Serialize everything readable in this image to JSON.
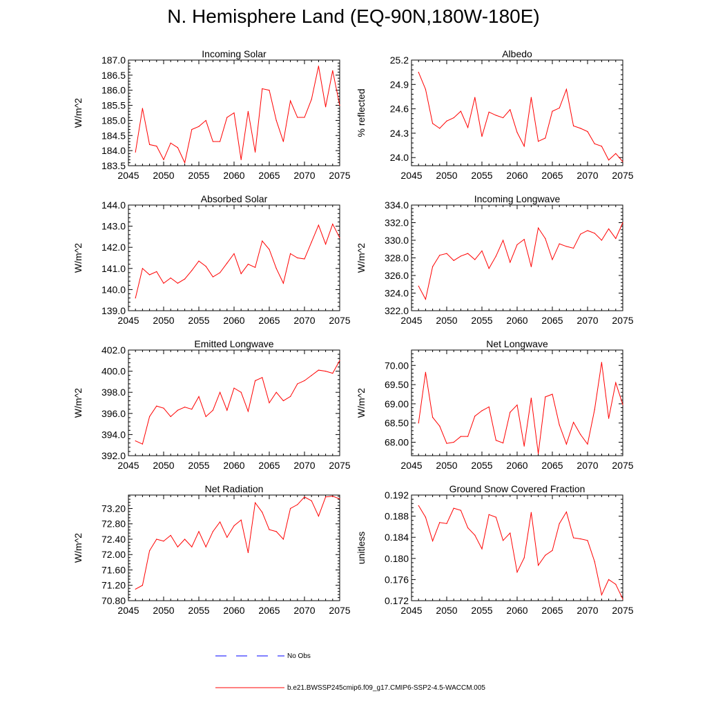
{
  "title": "N. Hemisphere Land (EQ-90N,180W-180E)",
  "colors": {
    "series": "#ff0000",
    "obs": "#0000ff",
    "axis": "#000000"
  },
  "legend": {
    "obs_label": "No Obs",
    "model_label": "b.e21.BWSSP245cmip6.f09_g17.CMIP6-SSP2-4.5-WACCM.005"
  },
  "chart_data": [
    {
      "type": "line",
      "title": "Incoming Solar",
      "ylabel": "W/m^2",
      "xlim": [
        2045,
        2075
      ],
      "ylim": [
        183.5,
        187.0
      ],
      "xticks": [
        2045,
        2050,
        2055,
        2060,
        2065,
        2070,
        2075
      ],
      "yticks": [
        183.5,
        184.0,
        184.5,
        185.0,
        185.5,
        186.0,
        186.5,
        187.0
      ],
      "ytick_labels": [
        "183.5",
        "184.0",
        "184.5",
        "185.0",
        "185.5",
        "186.0",
        "186.5",
        "187.0"
      ],
      "x": [
        2046,
        2047,
        2048,
        2049,
        2050,
        2051,
        2052,
        2053,
        2054,
        2055,
        2056,
        2057,
        2058,
        2059,
        2060,
        2061,
        2062,
        2063,
        2064,
        2065,
        2066,
        2067,
        2068,
        2069,
        2070,
        2071,
        2072,
        2073,
        2074,
        2075
      ],
      "values": [
        183.95,
        185.4,
        184.2,
        184.15,
        183.7,
        184.25,
        184.1,
        183.6,
        184.7,
        184.8,
        185.0,
        184.3,
        184.3,
        185.1,
        185.25,
        183.7,
        185.3,
        183.95,
        186.05,
        186.0,
        185.0,
        184.3,
        185.65,
        185.1,
        185.1,
        185.7,
        186.8,
        185.45,
        186.65,
        185.5
      ]
    },
    {
      "type": "line",
      "title": "Albedo",
      "ylabel": "% reflected",
      "xlim": [
        2045,
        2075
      ],
      "ylim": [
        23.9,
        25.2
      ],
      "xticks": [
        2045,
        2050,
        2055,
        2060,
        2065,
        2070,
        2075
      ],
      "yticks": [
        24.0,
        24.3,
        24.6,
        24.9,
        25.2
      ],
      "ytick_labels": [
        "24.0",
        "24.3",
        "24.6",
        "24.9",
        "25.2"
      ],
      "x": [
        2046,
        2047,
        2048,
        2049,
        2050,
        2051,
        2052,
        2053,
        2054,
        2055,
        2056,
        2057,
        2058,
        2059,
        2060,
        2061,
        2062,
        2063,
        2064,
        2065,
        2066,
        2067,
        2068,
        2069,
        2070,
        2071,
        2072,
        2073,
        2074,
        2075
      ],
      "values": [
        25.05,
        24.84,
        24.42,
        24.36,
        24.45,
        24.49,
        24.57,
        24.37,
        24.74,
        24.26,
        24.56,
        24.52,
        24.49,
        24.59,
        24.31,
        24.14,
        24.74,
        24.2,
        24.24,
        24.57,
        24.61,
        24.84,
        24.39,
        24.36,
        24.32,
        24.17,
        24.14,
        23.97,
        24.05,
        23.95
      ]
    },
    {
      "type": "line",
      "title": "Absorbed Solar",
      "ylabel": "W/m^2",
      "xlim": [
        2045,
        2075
      ],
      "ylim": [
        139.0,
        144.0
      ],
      "xticks": [
        2045,
        2050,
        2055,
        2060,
        2065,
        2070,
        2075
      ],
      "yticks": [
        139.0,
        140.0,
        141.0,
        142.0,
        143.0,
        144.0
      ],
      "ytick_labels": [
        "139.0",
        "140.0",
        "141.0",
        "142.0",
        "143.0",
        "144.0"
      ],
      "x": [
        2046,
        2047,
        2048,
        2049,
        2050,
        2051,
        2052,
        2053,
        2054,
        2055,
        2056,
        2057,
        2058,
        2059,
        2060,
        2061,
        2062,
        2063,
        2064,
        2065,
        2066,
        2067,
        2068,
        2069,
        2070,
        2071,
        2072,
        2073,
        2074,
        2075
      ],
      "values": [
        139.6,
        141.0,
        140.7,
        140.85,
        140.3,
        140.55,
        140.3,
        140.5,
        140.9,
        141.35,
        141.1,
        140.6,
        140.8,
        141.25,
        141.7,
        140.75,
        141.2,
        141.05,
        142.3,
        141.9,
        141.0,
        140.3,
        141.7,
        141.5,
        141.45,
        142.25,
        143.05,
        142.15,
        143.1,
        142.45
      ]
    },
    {
      "type": "line",
      "title": "Incoming Longwave",
      "ylabel": "W/m^2",
      "xlim": [
        2045,
        2075
      ],
      "ylim": [
        322.0,
        334.0
      ],
      "xticks": [
        2045,
        2050,
        2055,
        2060,
        2065,
        2070,
        2075
      ],
      "yticks": [
        322.0,
        324.0,
        326.0,
        328.0,
        330.0,
        332.0,
        334.0
      ],
      "ytick_labels": [
        "322.0",
        "324.0",
        "326.0",
        "328.0",
        "330.0",
        "332.0",
        "334.0"
      ],
      "x": [
        2046,
        2047,
        2048,
        2049,
        2050,
        2051,
        2052,
        2053,
        2054,
        2055,
        2056,
        2057,
        2058,
        2059,
        2060,
        2061,
        2062,
        2063,
        2064,
        2065,
        2066,
        2067,
        2068,
        2069,
        2070,
        2071,
        2072,
        2073,
        2074,
        2075
      ],
      "values": [
        324.8,
        323.3,
        327.0,
        328.3,
        328.5,
        327.7,
        328.2,
        328.5,
        327.8,
        328.8,
        326.8,
        328.2,
        330.0,
        327.5,
        329.5,
        330.1,
        327.0,
        331.4,
        330.2,
        327.8,
        329.6,
        329.3,
        329.1,
        330.7,
        331.1,
        330.8,
        330.0,
        331.3,
        330.2,
        332.0
      ]
    },
    {
      "type": "line",
      "title": "Emitted Longwave",
      "ylabel": "W/m^2",
      "xlim": [
        2045,
        2075
      ],
      "ylim": [
        392.0,
        402.0
      ],
      "xticks": [
        2045,
        2050,
        2055,
        2060,
        2065,
        2070,
        2075
      ],
      "yticks": [
        392.0,
        394.0,
        396.0,
        398.0,
        400.0,
        402.0
      ],
      "ytick_labels": [
        "392.0",
        "394.0",
        "396.0",
        "398.0",
        "400.0",
        "402.0"
      ],
      "x": [
        2046,
        2047,
        2048,
        2049,
        2050,
        2051,
        2052,
        2053,
        2054,
        2055,
        2056,
        2057,
        2058,
        2059,
        2060,
        2061,
        2062,
        2063,
        2064,
        2065,
        2066,
        2067,
        2068,
        2069,
        2070,
        2071,
        2072,
        2073,
        2074,
        2075
      ],
      "values": [
        393.4,
        393.1,
        395.7,
        396.7,
        396.5,
        395.7,
        396.3,
        396.6,
        396.4,
        397.6,
        395.7,
        396.3,
        398.0,
        396.3,
        398.4,
        398.0,
        396.2,
        399.1,
        399.4,
        397.0,
        398.0,
        397.2,
        397.6,
        398.8,
        399.1,
        399.6,
        400.1,
        400.0,
        399.8,
        401.0
      ]
    },
    {
      "type": "line",
      "title": "Net Longwave",
      "ylabel": "W/m^2",
      "xlim": [
        2045,
        2075
      ],
      "ylim": [
        67.65,
        70.4
      ],
      "xticks": [
        2045,
        2050,
        2055,
        2060,
        2065,
        2070,
        2075
      ],
      "yticks": [
        68.0,
        68.5,
        69.0,
        69.5,
        70.0
      ],
      "ytick_labels": [
        "68.00",
        "68.50",
        "69.00",
        "69.50",
        "70.00"
      ],
      "x": [
        2046,
        2047,
        2048,
        2049,
        2050,
        2051,
        2052,
        2053,
        2054,
        2055,
        2056,
        2057,
        2058,
        2059,
        2060,
        2061,
        2062,
        2063,
        2064,
        2065,
        2066,
        2067,
        2068,
        2069,
        2070,
        2071,
        2072,
        2073,
        2074,
        2075
      ],
      "values": [
        68.5,
        69.82,
        68.65,
        68.42,
        67.97,
        68.0,
        68.15,
        68.15,
        68.68,
        68.82,
        68.92,
        68.05,
        67.98,
        68.78,
        68.97,
        67.9,
        69.15,
        67.7,
        69.18,
        69.25,
        68.45,
        67.95,
        68.52,
        68.2,
        67.95,
        68.85,
        70.08,
        68.62,
        69.55,
        68.98
      ]
    },
    {
      "type": "line",
      "title": "Net Radiation",
      "ylabel": "W/m^2",
      "xlim": [
        2045,
        2075
      ],
      "ylim": [
        70.8,
        73.55
      ],
      "xticks": [
        2045,
        2050,
        2055,
        2060,
        2065,
        2070,
        2075
      ],
      "yticks": [
        70.8,
        71.2,
        71.6,
        72.0,
        72.4,
        72.8,
        73.2
      ],
      "ytick_labels": [
        "70.80",
        "71.20",
        "71.60",
        "72.00",
        "72.40",
        "72.80",
        "73.20"
      ],
      "x": [
        2046,
        2047,
        2048,
        2049,
        2050,
        2051,
        2052,
        2053,
        2054,
        2055,
        2056,
        2057,
        2058,
        2059,
        2060,
        2061,
        2062,
        2063,
        2064,
        2065,
        2066,
        2067,
        2068,
        2069,
        2070,
        2071,
        2072,
        2073,
        2074,
        2075
      ],
      "values": [
        71.1,
        71.2,
        72.1,
        72.4,
        72.35,
        72.5,
        72.2,
        72.4,
        72.2,
        72.6,
        72.2,
        72.6,
        72.85,
        72.45,
        72.75,
        72.9,
        72.05,
        73.35,
        73.1,
        72.65,
        72.6,
        72.4,
        73.2,
        73.3,
        73.5,
        73.4,
        73.0,
        73.5,
        73.52,
        73.45
      ]
    },
    {
      "type": "line",
      "title": "Ground Snow Covered Fraction",
      "ylabel": "unitless",
      "xlim": [
        2045,
        2075
      ],
      "ylim": [
        0.172,
        0.192
      ],
      "xticks": [
        2045,
        2050,
        2055,
        2060,
        2065,
        2070,
        2075
      ],
      "yticks": [
        0.172,
        0.176,
        0.18,
        0.184,
        0.188,
        0.192
      ],
      "ytick_labels": [
        "0.172",
        "0.176",
        "0.180",
        "0.184",
        "0.188",
        "0.192"
      ],
      "x": [
        2046,
        2047,
        2048,
        2049,
        2050,
        2051,
        2052,
        2053,
        2054,
        2055,
        2056,
        2057,
        2058,
        2059,
        2060,
        2061,
        2062,
        2063,
        2064,
        2065,
        2066,
        2067,
        2068,
        2069,
        2070,
        2071,
        2072,
        2073,
        2074,
        2075
      ],
      "values": [
        0.19,
        0.1878,
        0.1833,
        0.1868,
        0.1866,
        0.1895,
        0.1891,
        0.1858,
        0.1844,
        0.1818,
        0.1883,
        0.1878,
        0.1834,
        0.1848,
        0.1774,
        0.1801,
        0.1887,
        0.1787,
        0.1806,
        0.1815,
        0.1866,
        0.1888,
        0.1839,
        0.1837,
        0.1834,
        0.1794,
        0.1731,
        0.176,
        0.1751,
        0.1723
      ]
    }
  ]
}
